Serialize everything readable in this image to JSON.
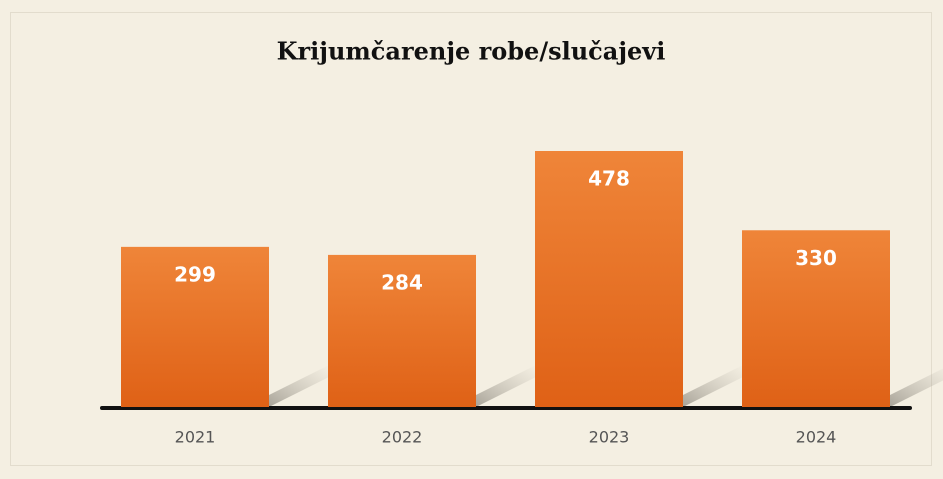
{
  "chart_data": {
    "type": "bar",
    "title": "Krijumčarenje robe/slučajevi",
    "categories": [
      "2021",
      "2022",
      "2023",
      "2024"
    ],
    "values": [
      299,
      284,
      478,
      330
    ],
    "color": "#e8702a"
  }
}
